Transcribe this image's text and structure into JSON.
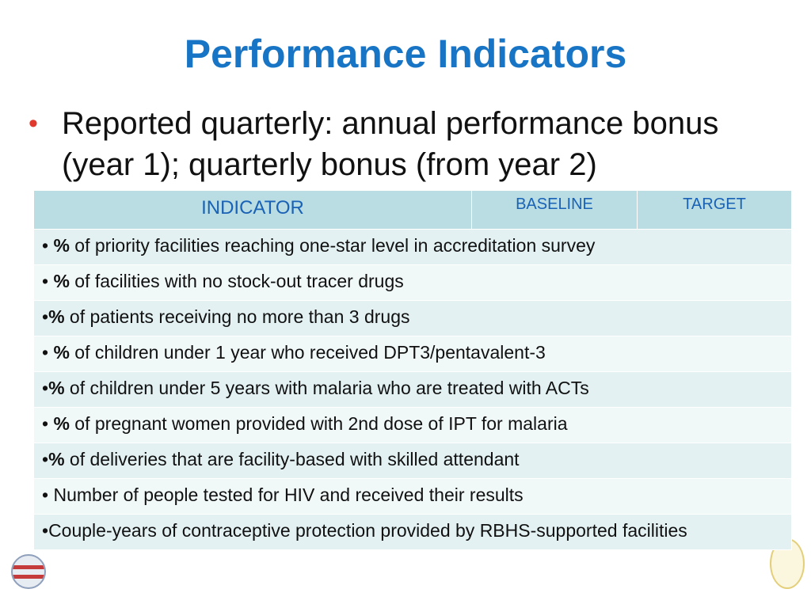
{
  "slide": {
    "title": "Performance Indicators",
    "bullet": "Reported quarterly: annual performance bonus (year 1); quarterly bonus (from year 2)"
  },
  "table": {
    "headers": {
      "indicator": "INDICATOR",
      "baseline": "BASELINE",
      "target": "TARGET"
    },
    "rows": [
      {
        "prefix": "• ",
        "bold": "%",
        "text": " of priority facilities reaching one-star level in accreditation survey"
      },
      {
        "prefix": "• ",
        "bold": "%",
        "text": " of facilities with no stock-out tracer drugs"
      },
      {
        "prefix": "•",
        "bold": "%",
        "text": " of patients receiving no more than 3 drugs"
      },
      {
        "prefix": "• ",
        "bold": "%",
        "text": " of children under 1 year who received DPT3/pentavalent-3"
      },
      {
        "prefix": "•",
        "bold": "%",
        "text": " of children under 5 years with malaria who are treated with ACTs"
      },
      {
        "prefix": "• ",
        "bold": "%",
        "text": " of pregnant women provided with 2nd dose of IPT for malaria"
      },
      {
        "prefix": "•",
        "bold": "%",
        "text": " of deliveries that are facility-based with skilled attendant"
      },
      {
        "prefix": "•",
        "bold": "",
        "text": " Number of people tested for HIV and received their results"
      },
      {
        "prefix": "•",
        "bold": "",
        "text": "Couple-years of contraceptive protection provided by RBHS-supported facilities"
      }
    ]
  }
}
